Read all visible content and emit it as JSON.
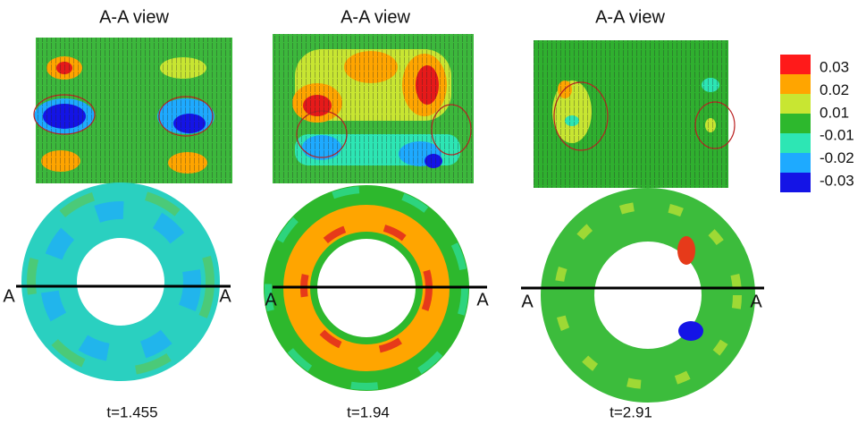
{
  "panels": [
    {
      "title": "A-A view",
      "time": "t=1.455",
      "section_labels": [
        "A",
        "A"
      ]
    },
    {
      "title": "A-A view",
      "time": "t=1.94",
      "section_labels": [
        "A",
        "A"
      ]
    },
    {
      "title": "A-A view",
      "time": "t=2.91",
      "section_labels": [
        "A",
        "A"
      ]
    }
  ],
  "colorbar": {
    "colors": [
      "#ff1a1a",
      "#ffa500",
      "#c8e632",
      "#2db82d",
      "#2de6b4",
      "#1eaaff",
      "#1414e6"
    ],
    "labels": [
      "0.03",
      "0.02",
      "0.01",
      "-0.01",
      "-0.02",
      "-0.03"
    ]
  }
}
